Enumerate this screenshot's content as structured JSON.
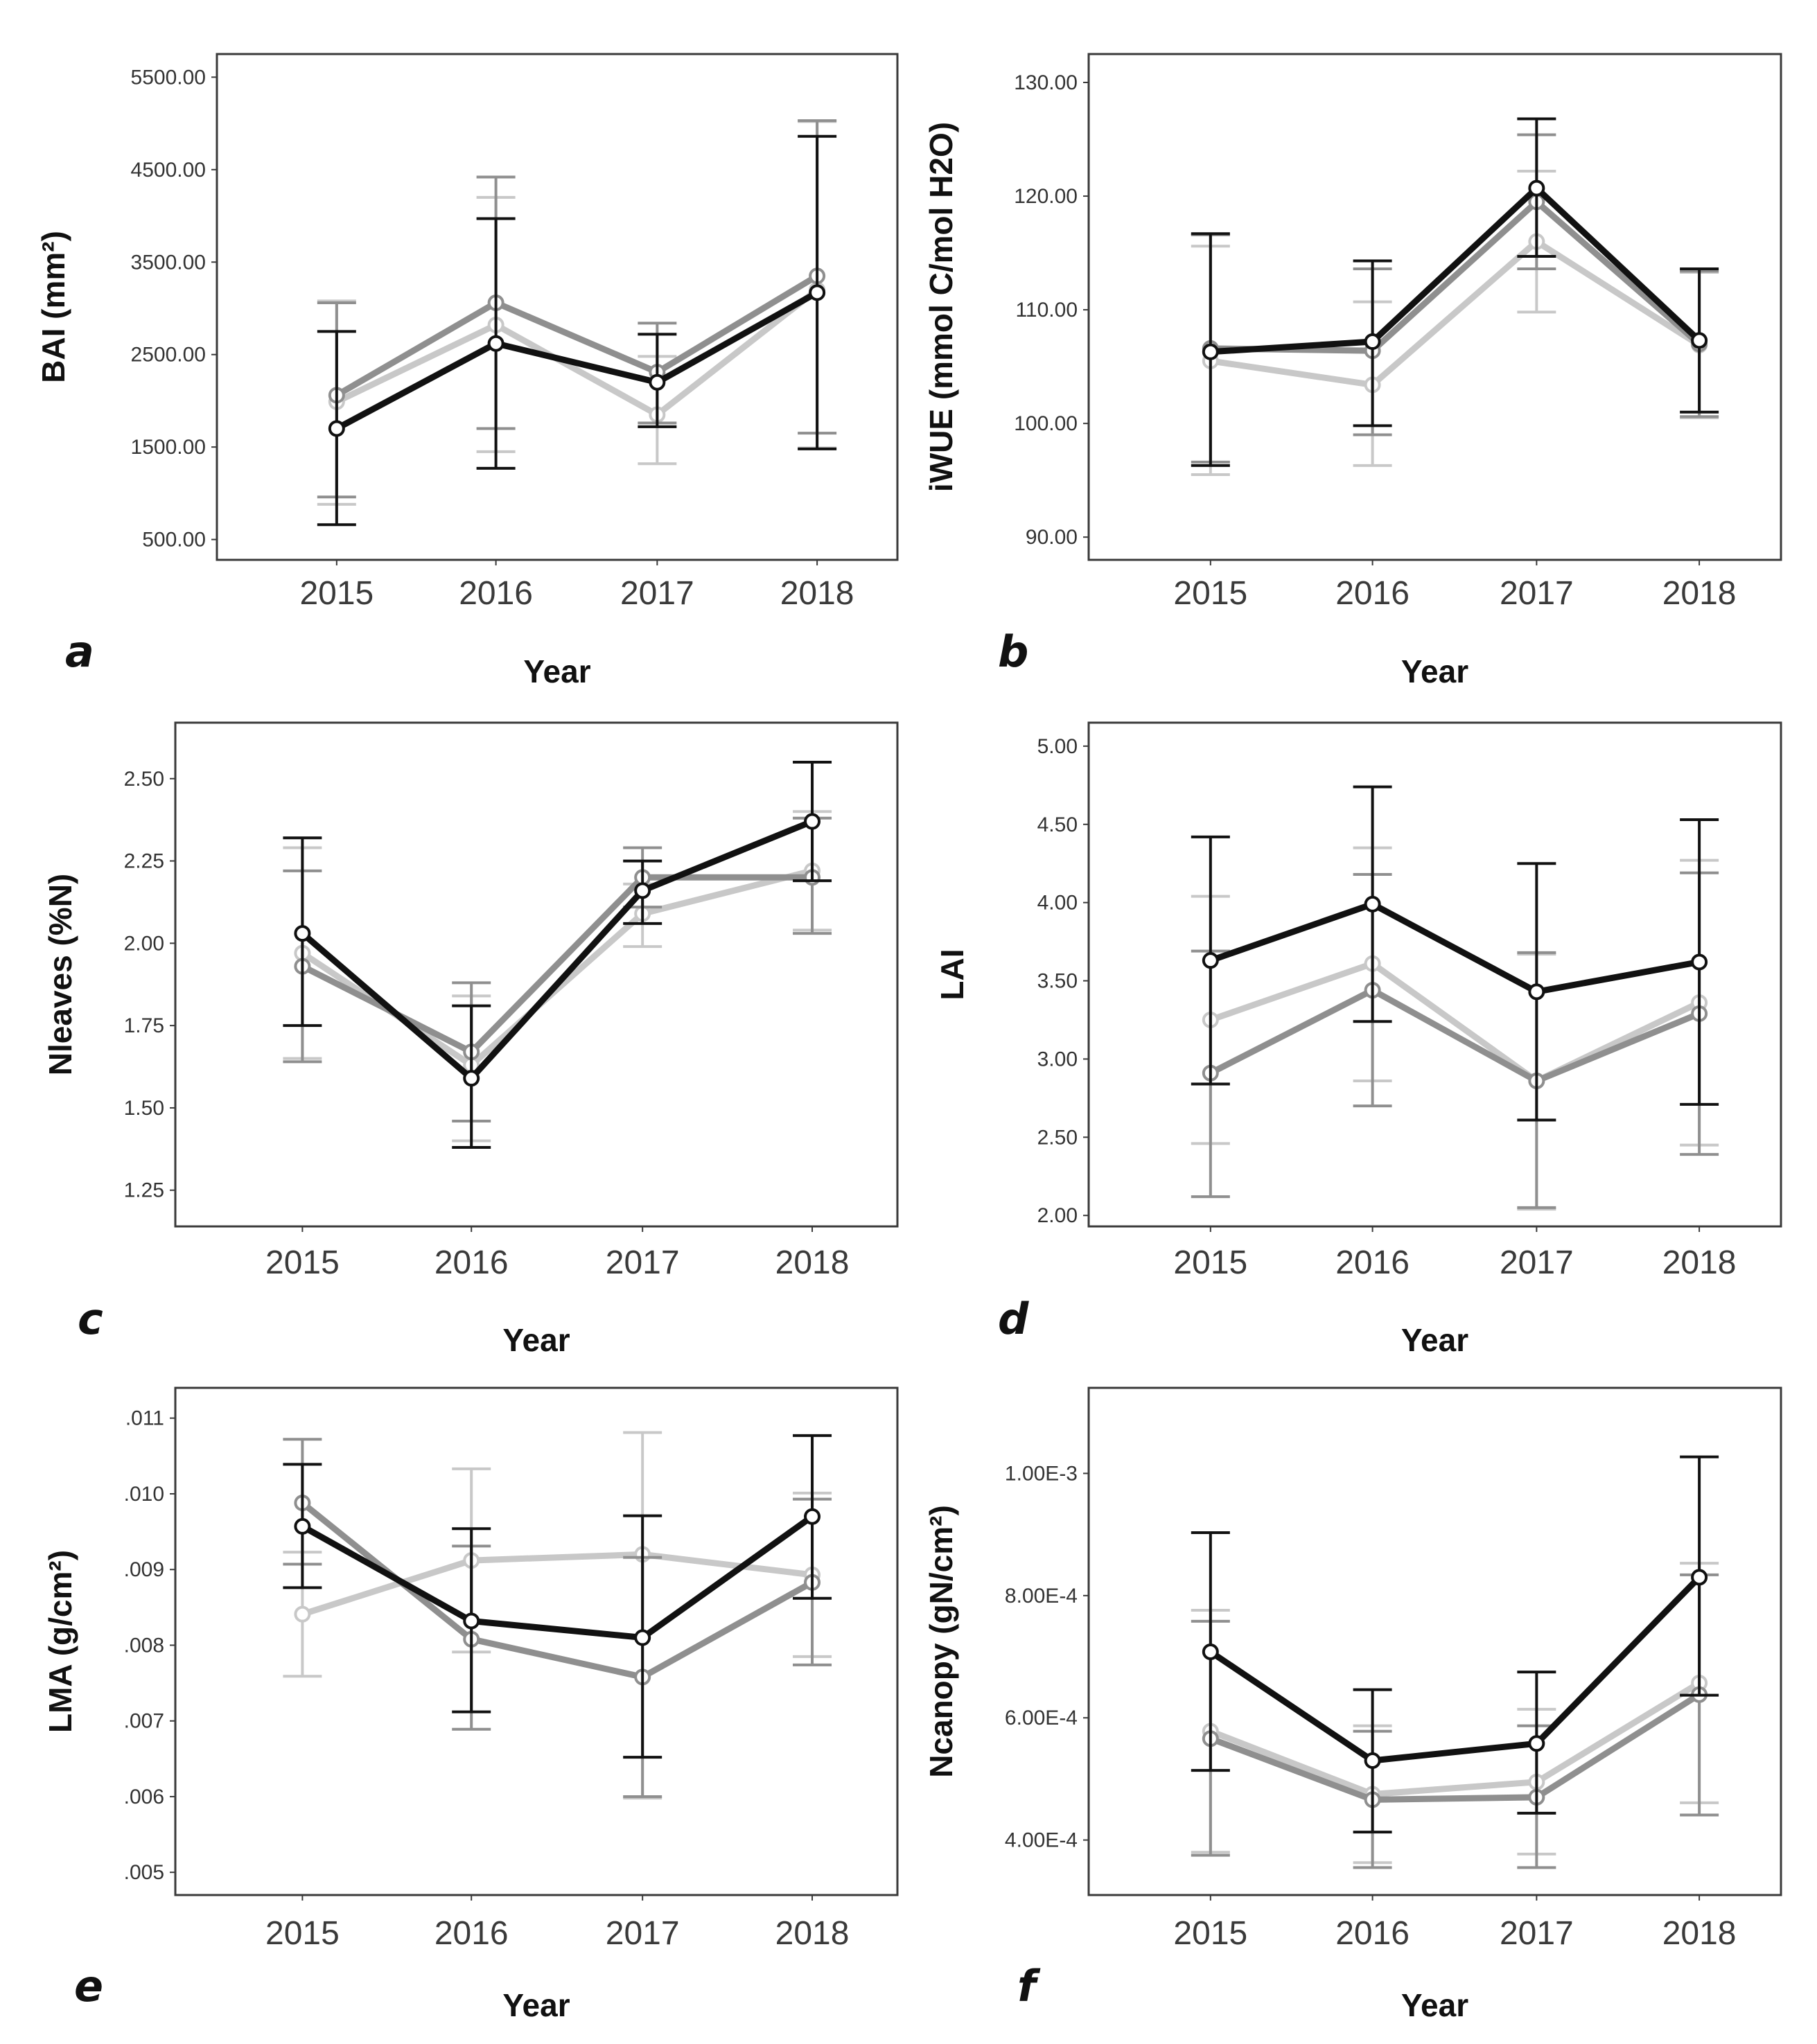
{
  "colors": [
    "#111111",
    "#8f8f8f",
    "#c8c8c8"
  ],
  "chart_data": [
    {
      "type": "line",
      "panel": "a",
      "x": [
        "2015",
        "2016",
        "2017",
        "2018"
      ],
      "xlabel": "Year",
      "ylabel": "BAI (mm²)",
      "ylim": [
        280,
        5750
      ],
      "yticks": [
        500,
        1500,
        2500,
        3500,
        4500,
        5500
      ],
      "ytick_labels": [
        "500.00",
        "1500.00",
        "2500.00",
        "3500.00",
        "4500.00",
        "5500.00"
      ],
      "series": [
        {
          "color": "#111111",
          "values": [
            1700,
            2620,
            2200,
            3170
          ],
          "err_low": [
            660,
            1270,
            1720,
            1480
          ],
          "err_high": [
            2750,
            3970,
            2720,
            4860
          ]
        },
        {
          "color": "#8f8f8f",
          "values": [
            2060,
            3060,
            2310,
            3350
          ],
          "err_low": [
            960,
            1700,
            1760,
            1650
          ],
          "err_high": [
            3060,
            4420,
            2840,
            5030
          ]
        },
        {
          "color": "#c8c8c8",
          "values": [
            1990,
            2820,
            1850,
            3200
          ],
          "err_low": [
            880,
            1450,
            1320,
            1490
          ],
          "err_high": [
            3080,
            4200,
            2480,
            5020
          ]
        }
      ]
    },
    {
      "type": "line",
      "panel": "b",
      "x": [
        "2015",
        "2016",
        "2017",
        "2018"
      ],
      "xlabel": "Year",
      "ylabel": "iWUE (mmol C/mol H2O)",
      "ylim": [
        88,
        132.5
      ],
      "yticks": [
        90,
        100,
        110,
        120,
        130
      ],
      "ytick_labels": [
        "90.00",
        "100.00",
        "110.00",
        "120.00",
        "130.00"
      ],
      "series": [
        {
          "color": "#111111",
          "values": [
            106.3,
            107.2,
            120.7,
            107.3
          ],
          "err_low": [
            96.3,
            99.8,
            114.7,
            101.0
          ],
          "err_high": [
            116.7,
            114.3,
            126.8,
            113.6
          ]
        },
        {
          "color": "#8f8f8f",
          "values": [
            106.6,
            106.4,
            119.5,
            107.0
          ],
          "err_low": [
            96.6,
            99.0,
            113.6,
            100.6
          ],
          "err_high": [
            116.6,
            113.6,
            125.4,
            113.4
          ]
        },
        {
          "color": "#c8c8c8",
          "values": [
            105.5,
            103.4,
            116.0,
            106.9
          ],
          "err_low": [
            95.5,
            96.3,
            109.8,
            100.5
          ],
          "err_high": [
            115.6,
            110.7,
            122.2,
            113.3
          ]
        }
      ]
    },
    {
      "type": "line",
      "panel": "c",
      "x": [
        "2015",
        "2016",
        "2017",
        "2018"
      ],
      "xlabel": "Year",
      "ylabel": "Nleaves (%N)",
      "ylim": [
        1.14,
        2.67
      ],
      "yticks": [
        1.25,
        1.5,
        1.75,
        2.0,
        2.25,
        2.5
      ],
      "ytick_labels": [
        "1.25",
        "1.50",
        "1.75",
        "2.00",
        "2.25",
        "2.50"
      ],
      "series": [
        {
          "color": "#111111",
          "values": [
            2.03,
            1.59,
            2.16,
            2.37
          ],
          "err_low": [
            1.75,
            1.38,
            2.06,
            2.19
          ],
          "err_high": [
            2.32,
            1.81,
            2.25,
            2.55
          ]
        },
        {
          "color": "#8f8f8f",
          "values": [
            1.93,
            1.67,
            2.2,
            2.2
          ],
          "err_low": [
            1.64,
            1.46,
            2.11,
            2.03
          ],
          "err_high": [
            2.22,
            1.88,
            2.29,
            2.38
          ]
        },
        {
          "color": "#c8c8c8",
          "values": [
            1.97,
            1.63,
            2.09,
            2.22
          ],
          "err_low": [
            1.65,
            1.4,
            1.99,
            2.04
          ],
          "err_high": [
            2.29,
            1.84,
            2.18,
            2.4
          ]
        }
      ]
    },
    {
      "type": "line",
      "panel": "d",
      "x": [
        "2015",
        "2016",
        "2017",
        "2018"
      ],
      "xlabel": "Year",
      "ylabel": "LAI",
      "ylim": [
        1.93,
        5.15
      ],
      "yticks": [
        2.0,
        2.5,
        3.0,
        3.5,
        4.0,
        4.5,
        5.0
      ],
      "ytick_labels": [
        "2.00",
        "2.50",
        "3.00",
        "3.50",
        "4.00",
        "4.50",
        "5.00"
      ],
      "series": [
        {
          "color": "#111111",
          "values": [
            3.63,
            3.99,
            3.43,
            3.62
          ],
          "err_low": [
            2.84,
            3.24,
            2.61,
            2.71
          ],
          "err_high": [
            4.42,
            4.74,
            4.25,
            4.53
          ]
        },
        {
          "color": "#8f8f8f",
          "values": [
            2.91,
            3.44,
            2.86,
            3.29
          ],
          "err_low": [
            2.12,
            2.7,
            2.05,
            2.39
          ],
          "err_high": [
            3.69,
            4.18,
            3.68,
            4.19
          ]
        },
        {
          "color": "#c8c8c8",
          "values": [
            3.25,
            3.61,
            2.86,
            3.36
          ],
          "err_low": [
            2.46,
            2.86,
            2.04,
            2.45
          ],
          "err_high": [
            4.04,
            4.35,
            3.67,
            4.27
          ]
        }
      ]
    },
    {
      "type": "line",
      "panel": "e",
      "x": [
        "2015",
        "2016",
        "2017",
        "2018"
      ],
      "xlabel": "Year",
      "ylabel": "LMA (g/cm²)",
      "ylim": [
        0.0047,
        0.0114
      ],
      "yticks": [
        0.005,
        0.006,
        0.007,
        0.008,
        0.009,
        0.01,
        0.011
      ],
      "ytick_labels": [
        ".005",
        ".006",
        ".007",
        ".008",
        ".009",
        ".010",
        ".011"
      ],
      "series": [
        {
          "color": "#111111",
          "values": [
            0.00957,
            0.00832,
            0.0081,
            0.0097
          ],
          "err_low": [
            0.00876,
            0.00712,
            0.00652,
            0.00862
          ],
          "err_high": [
            0.01039,
            0.00954,
            0.00971,
            0.01077
          ]
        },
        {
          "color": "#8f8f8f",
          "values": [
            0.00988,
            0.00808,
            0.00758,
            0.00883
          ],
          "err_low": [
            0.00907,
            0.00689,
            0.006,
            0.00774
          ],
          "err_high": [
            0.01072,
            0.00931,
            0.00916,
            0.00993
          ]
        },
        {
          "color": "#c8c8c8",
          "values": [
            0.00841,
            0.00912,
            0.0092,
            0.00893
          ],
          "err_low": [
            0.00759,
            0.00791,
            0.00598,
            0.00785
          ],
          "err_high": [
            0.00923,
            0.01033,
            0.01081,
            0.01001
          ]
        }
      ]
    },
    {
      "type": "line",
      "panel": "f",
      "x": [
        "2015",
        "2016",
        "2017",
        "2018"
      ],
      "xlabel": "Year",
      "ylabel": "Ncanopy (gN/cm²)",
      "ylim": [
        0.00031,
        0.00114
      ],
      "yticks": [
        0.0004,
        0.0006,
        0.0008,
        0.001
      ],
      "ytick_labels": [
        "4.00E-4",
        "6.00E-4",
        "8.00E-4",
        "1.00E-3"
      ],
      "series": [
        {
          "color": "#111111",
          "values": [
            0.000708,
            0.00053,
            0.000558,
            0.00083
          ],
          "err_low": [
            0.000514,
            0.000413,
            0.000444,
            0.000637
          ],
          "err_high": [
            0.000903,
            0.000646,
            0.000675,
            0.001027
          ]
        },
        {
          "color": "#8f8f8f",
          "values": [
            0.000566,
            0.000466,
            0.00047,
            0.000638
          ],
          "err_low": [
            0.000375,
            0.000355,
            0.000355,
            0.000441
          ],
          "err_high": [
            0.000758,
            0.000578,
            0.000587,
            0.000834
          ]
        },
        {
          "color": "#c8c8c8",
          "values": [
            0.000578,
            0.000475,
            0.000495,
            0.000657
          ],
          "err_low": [
            0.00038,
            0.000363,
            0.000377,
            0.000461
          ],
          "err_high": [
            0.000776,
            0.000587,
            0.000614,
            0.000853
          ]
        }
      ]
    }
  ]
}
